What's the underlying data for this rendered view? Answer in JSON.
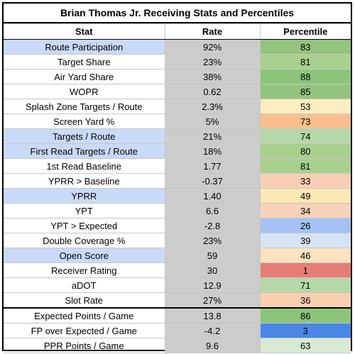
{
  "title": "Brian Thomas Jr. Receiving Stats and Percentiles",
  "columns": [
    "Stat",
    "Rate",
    "Percentile"
  ],
  "rows": [
    {
      "stat": "Route Participation",
      "rate": "92%",
      "percentile": "83",
      "stat_highlight": true,
      "pct_color": "#93c47d"
    },
    {
      "stat": "Target Share",
      "rate": "23%",
      "percentile": "81",
      "stat_highlight": false,
      "pct_color": "#a8d08d"
    },
    {
      "stat": "Air Yard Share",
      "rate": "38%",
      "percentile": "88",
      "stat_highlight": false,
      "pct_color": "#8cc47a"
    },
    {
      "stat": "WOPR",
      "rate": "0.62",
      "percentile": "85",
      "stat_highlight": false,
      "pct_color": "#93c47d"
    },
    {
      "stat": "Splash Zone Targets / Route",
      "rate": "2.3%",
      "percentile": "53",
      "stat_highlight": false,
      "pct_color": "#fdeec2"
    },
    {
      "stat": "Screen Yard %",
      "rate": "5%",
      "percentile": "73",
      "stat_highlight": false,
      "pct_color": "#f9c08e"
    },
    {
      "stat": "Targets / Route",
      "rate": "21%",
      "percentile": "74",
      "stat_highlight": true,
      "pct_color": "#b6d7a8"
    },
    {
      "stat": "First Read Targets / Route",
      "rate": "18%",
      "percentile": "80",
      "stat_highlight": true,
      "pct_color": "#a8d08d"
    },
    {
      "stat": "1st Read Baseline",
      "rate": "1.77",
      "percentile": "81",
      "stat_highlight": false,
      "pct_color": "#a8d08d"
    },
    {
      "stat": "YPRR > Baseline",
      "rate": "-0.37",
      "percentile": "33",
      "stat_highlight": false,
      "pct_color": "#f8cfb5"
    },
    {
      "stat": "YPRR",
      "rate": "1.40",
      "percentile": "49",
      "stat_highlight": true,
      "pct_color": "#fce8b2"
    },
    {
      "stat": "YPT",
      "rate": "6.6",
      "percentile": "34",
      "stat_highlight": false,
      "pct_color": "#f8d2b8"
    },
    {
      "stat": "YPT > Expected",
      "rate": "-2.8",
      "percentile": "26",
      "stat_highlight": false,
      "pct_color": "#a4c2f4"
    },
    {
      "stat": "Double Coverage %",
      "rate": "23%",
      "percentile": "39",
      "stat_highlight": false,
      "pct_color": "#d6e3f5"
    },
    {
      "stat": "Open Score",
      "rate": "59",
      "percentile": "46",
      "stat_highlight": true,
      "pct_color": "#fce3bf"
    },
    {
      "stat": "Receiver Rating",
      "rate": "30",
      "percentile": "1",
      "stat_highlight": false,
      "pct_color": "#e67c73"
    },
    {
      "stat": "aDOT",
      "rate": "12.9",
      "percentile": "71",
      "stat_highlight": false,
      "pct_color": "#b6d7a8"
    },
    {
      "stat": "Slot Rate",
      "rate": "27%",
      "percentile": "36",
      "stat_highlight": false,
      "pct_color": "#f8d0b0"
    },
    {
      "stat": "Expected Points / Game",
      "rate": "13.8",
      "percentile": "86",
      "stat_highlight": false,
      "pct_color": "#8cc47a",
      "separator": true
    },
    {
      "stat": "FP over Expected / Game",
      "rate": "-4.2",
      "percentile": "3",
      "stat_highlight": false,
      "pct_color": "#4a86e8"
    },
    {
      "stat": "PPR Points / Game",
      "rate": "9.6",
      "percentile": "63",
      "stat_highlight": false,
      "pct_color": "#d9ead3"
    }
  ]
}
